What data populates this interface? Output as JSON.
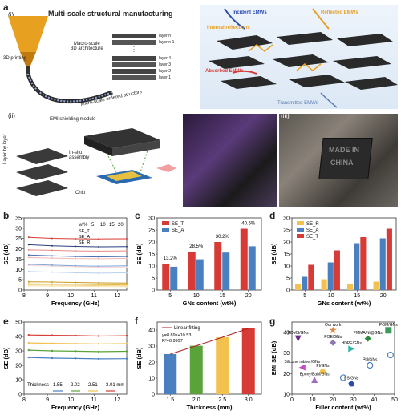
{
  "panel_a": {
    "letter": "a",
    "sub_i": "(i)",
    "title": "Multi-scale structural manufacturing",
    "printing": "3D printing",
    "macro": "Macro-scale\n3D architecture",
    "micro": "Micro-scale ordered structure",
    "layers": [
      "layer n",
      "layer n-1",
      "layer 4",
      "layer 3",
      "layer 2",
      "layer 1"
    ],
    "incident": "Incident EMWs",
    "reflected": "Reflected EMWs",
    "internal": "Internal reflections",
    "absorbed": "Absorbed EMWs",
    "transmitted": "Transmitted EMWs"
  },
  "panel_ii": {
    "sub": "(ii)",
    "module": "EMI shielding module",
    "layer_by_layer": "Layer by layer",
    "insitu": "In-situ\nassembly",
    "chip": "Chip"
  },
  "panel_iii": {
    "sub": "(iii)",
    "made_in": "MADE IN",
    "china": "CHINA"
  },
  "colors": {
    "red": "#d63b35",
    "blue": "#4a7fc0",
    "yellow": "#f2c14e",
    "green": "#5aa33a",
    "teal": "#2bb5a8",
    "grey": "#8a8a8a"
  },
  "chart_data": [
    {
      "id": "b",
      "type": "line",
      "xlabel": "Frequency (GHz)",
      "ylabel": "SE (dB)",
      "xlim": [
        8,
        12.4
      ],
      "ylim": [
        0,
        35
      ],
      "xticks": [
        8,
        9,
        10,
        11,
        12
      ],
      "yticks": [
        0,
        5,
        10,
        15,
        20,
        25,
        30,
        35
      ],
      "legend_header": "wt%",
      "legend_cols": [
        "5",
        "10",
        "15",
        "20"
      ],
      "legend_rows": [
        "SE_T",
        "SE_A",
        "SE_R"
      ],
      "series": [
        {
          "group": "SE_T",
          "wt": "20",
          "color": "#d63b35",
          "values": [
            25.6,
            25.1,
            24.9,
            24.8,
            24.9
          ]
        },
        {
          "group": "SE_T",
          "wt": "15",
          "color": "#e88a84",
          "values": [
            19.5,
            19.3,
            19.0,
            18.9,
            19.0
          ]
        },
        {
          "group": "SE_T",
          "wt": "10",
          "color": "#f2b8b4",
          "values": [
            15.8,
            15.5,
            15.3,
            15.2,
            15.4
          ]
        },
        {
          "group": "SE_T",
          "wt": "5",
          "color": "#f7d7d4",
          "values": [
            12.0,
            11.6,
            11.3,
            11.0,
            11.2
          ]
        },
        {
          "group": "SE_A",
          "wt": "20",
          "color": "#2a3f7a",
          "values": [
            22.0,
            21.5,
            21.2,
            21.0,
            21.1
          ]
        },
        {
          "group": "SE_A",
          "wt": "15",
          "color": "#4a6cb0",
          "values": [
            17.0,
            16.6,
            16.3,
            16.1,
            16.3
          ]
        },
        {
          "group": "SE_A",
          "wt": "10",
          "color": "#7fa2d6",
          "values": [
            12.5,
            12.1,
            11.8,
            11.6,
            11.8
          ]
        },
        {
          "group": "SE_A",
          "wt": "5",
          "color": "#b9d0ee",
          "values": [
            9.0,
            8.7,
            8.4,
            8.2,
            8.4
          ]
        },
        {
          "group": "SE_R",
          "wt": "20",
          "color": "#c79a1e",
          "values": [
            4.0,
            3.9,
            3.7,
            3.5,
            3.4
          ]
        },
        {
          "group": "SE_R",
          "wt": "15",
          "color": "#e3b94a",
          "values": [
            3.0,
            2.9,
            2.8,
            2.6,
            2.5
          ]
        },
        {
          "group": "SE_R",
          "wt": "10",
          "color": "#f0d27f",
          "values": [
            2.5,
            2.4,
            2.3,
            2.1,
            2.0
          ]
        },
        {
          "group": "SE_R",
          "wt": "5",
          "color": "#f7e6b5",
          "values": [
            2.0,
            1.9,
            1.8,
            1.7,
            1.6
          ]
        }
      ],
      "x": [
        8.2,
        9.2,
        10.2,
        11.2,
        12.4
      ]
    },
    {
      "id": "c",
      "type": "bar",
      "xlabel": "GNs content (wt%)",
      "ylabel": "SE (dB)",
      "categories": [
        "5",
        "10",
        "15",
        "20"
      ],
      "ylim": [
        0,
        30
      ],
      "yticks": [
        0,
        5,
        10,
        15,
        20,
        25,
        30
      ],
      "series": [
        {
          "name": "SE_T",
          "color": "#d63b35",
          "values": [
            11.0,
            16.0,
            20.0,
            25.5
          ]
        },
        {
          "name": "SE_A",
          "color": "#4a7fc0",
          "values": [
            9.7,
            12.8,
            15.6,
            18.2
          ]
        }
      ],
      "annotations": [
        "13.2%",
        "28.5%",
        "30.2%",
        "40.6%"
      ]
    },
    {
      "id": "d",
      "type": "bar",
      "xlabel": "GNs content (wt%)",
      "ylabel": "SE (dB)",
      "categories": [
        "5",
        "10",
        "15",
        "20"
      ],
      "ylim": [
        0,
        30
      ],
      "yticks": [
        0,
        5,
        10,
        15,
        20,
        25,
        30
      ],
      "series": [
        {
          "name": "SE_R",
          "color": "#f2c14e",
          "values": [
            2.5,
            4.5,
            2.5,
            3.5
          ]
        },
        {
          "name": "SE_A",
          "color": "#4a7fc0",
          "values": [
            5.5,
            11.5,
            19.5,
            21.5
          ]
        },
        {
          "name": "SE_T",
          "color": "#d63b35",
          "values": [
            10.5,
            16.5,
            22.0,
            25.5
          ]
        }
      ]
    },
    {
      "id": "e",
      "type": "line",
      "xlabel": "Frequency (GHz)",
      "ylabel": "SE (dB)",
      "xlim": [
        8,
        12.4
      ],
      "ylim": [
        0,
        50
      ],
      "xticks": [
        8,
        9,
        10,
        11,
        12
      ],
      "yticks": [
        0,
        10,
        20,
        30,
        40,
        50
      ],
      "legend_title": "Thickness",
      "series": [
        {
          "name": "1.55",
          "color": "#4a7fc0",
          "values": [
            25.5,
            25.0,
            24.8,
            24.5,
            24.6
          ]
        },
        {
          "name": "2.02",
          "color": "#5aa33a",
          "values": [
            30.5,
            30.0,
            29.8,
            29.5,
            29.7
          ]
        },
        {
          "name": "2.51",
          "color": "#f2c14e",
          "values": [
            35.5,
            35.2,
            35.0,
            34.8,
            35.0
          ]
        },
        {
          "name": "3.01 mm",
          "color": "#d63b35",
          "values": [
            41.0,
            40.8,
            40.6,
            40.3,
            40.5
          ]
        }
      ],
      "x": [
        8.2,
        9.2,
        10.2,
        11.2,
        12.4
      ]
    },
    {
      "id": "f",
      "type": "bar",
      "xlabel": "Thickness (mm)",
      "ylabel": "SE (dB)",
      "categories": [
        "1.5",
        "2.0",
        "2.5",
        "3.0"
      ],
      "ylim": [
        0,
        45
      ],
      "yticks": [
        0,
        10,
        20,
        30,
        40
      ],
      "series": [
        {
          "name": "SE",
          "colors": [
            "#4a7fc0",
            "#5aa33a",
            "#f2c14e",
            "#d63b35"
          ],
          "values": [
            25.0,
            30.2,
            35.5,
            41.0
          ]
        }
      ],
      "fit_label": "Linear fitting",
      "equation": "y=8.89x+10.53",
      "r2": "R²=0.9997"
    },
    {
      "id": "g",
      "type": "scatter",
      "xlabel": "Filler content (wt%)",
      "ylabel": "EMI SE (dB)",
      "xlim": [
        0,
        50
      ],
      "ylim": [
        10,
        45
      ],
      "xticks": [
        0,
        10,
        20,
        30,
        40,
        50
      ],
      "yticks": [
        10,
        20,
        30,
        40
      ],
      "points": [
        {
          "label": "Our work",
          "x": 20,
          "y": 41,
          "color": "#e8823a",
          "shape": "star"
        },
        {
          "label": "POM/GNs",
          "x": 47,
          "y": 41,
          "color": "#3a9a5a",
          "shape": "square"
        },
        {
          "label": "PDMS/GNs",
          "x": 3,
          "y": 37,
          "color": "#6a2a8a",
          "shape": "triangle-down"
        },
        {
          "label": "POE/GNs",
          "x": 20,
          "y": 35,
          "color": "#8a7ab0",
          "shape": "diamond"
        },
        {
          "label": "PMMA/Ni@GNs",
          "x": 37,
          "y": 37,
          "color": "#2a8a3a",
          "shape": "diamond"
        },
        {
          "label": "HDPE/GNs",
          "x": 29,
          "y": 32,
          "color": "#2bb5a8",
          "shape": "triangle-right"
        },
        {
          "label": "Silicone rubber/GNs",
          "x": 5,
          "y": 23,
          "color": "#c74ac7",
          "shape": "triangle-left"
        },
        {
          "label": "PI/GNs",
          "x": 15,
          "y": 21,
          "color": "#f2c14e",
          "shape": "circle"
        },
        {
          "label": "PU/GNs",
          "x": 38,
          "y": 24,
          "color": "#4a7fc0",
          "shape": "circle-open"
        },
        {
          "label": "Epoxy/BaM/GNs",
          "x": 11,
          "y": 17,
          "color": "#a06ac0",
          "shape": "triangle-up"
        },
        {
          "label": "PS/GNs",
          "x": 29,
          "y": 15,
          "color": "#2a4ab0",
          "shape": "pentagon"
        },
        {
          "label": "",
          "x": 25,
          "y": 18,
          "color": "#4a7fc0",
          "shape": "circle-open"
        },
        {
          "label": "",
          "x": 48,
          "y": 29,
          "color": "#4a7fc0",
          "shape": "circle-open"
        }
      ]
    }
  ]
}
